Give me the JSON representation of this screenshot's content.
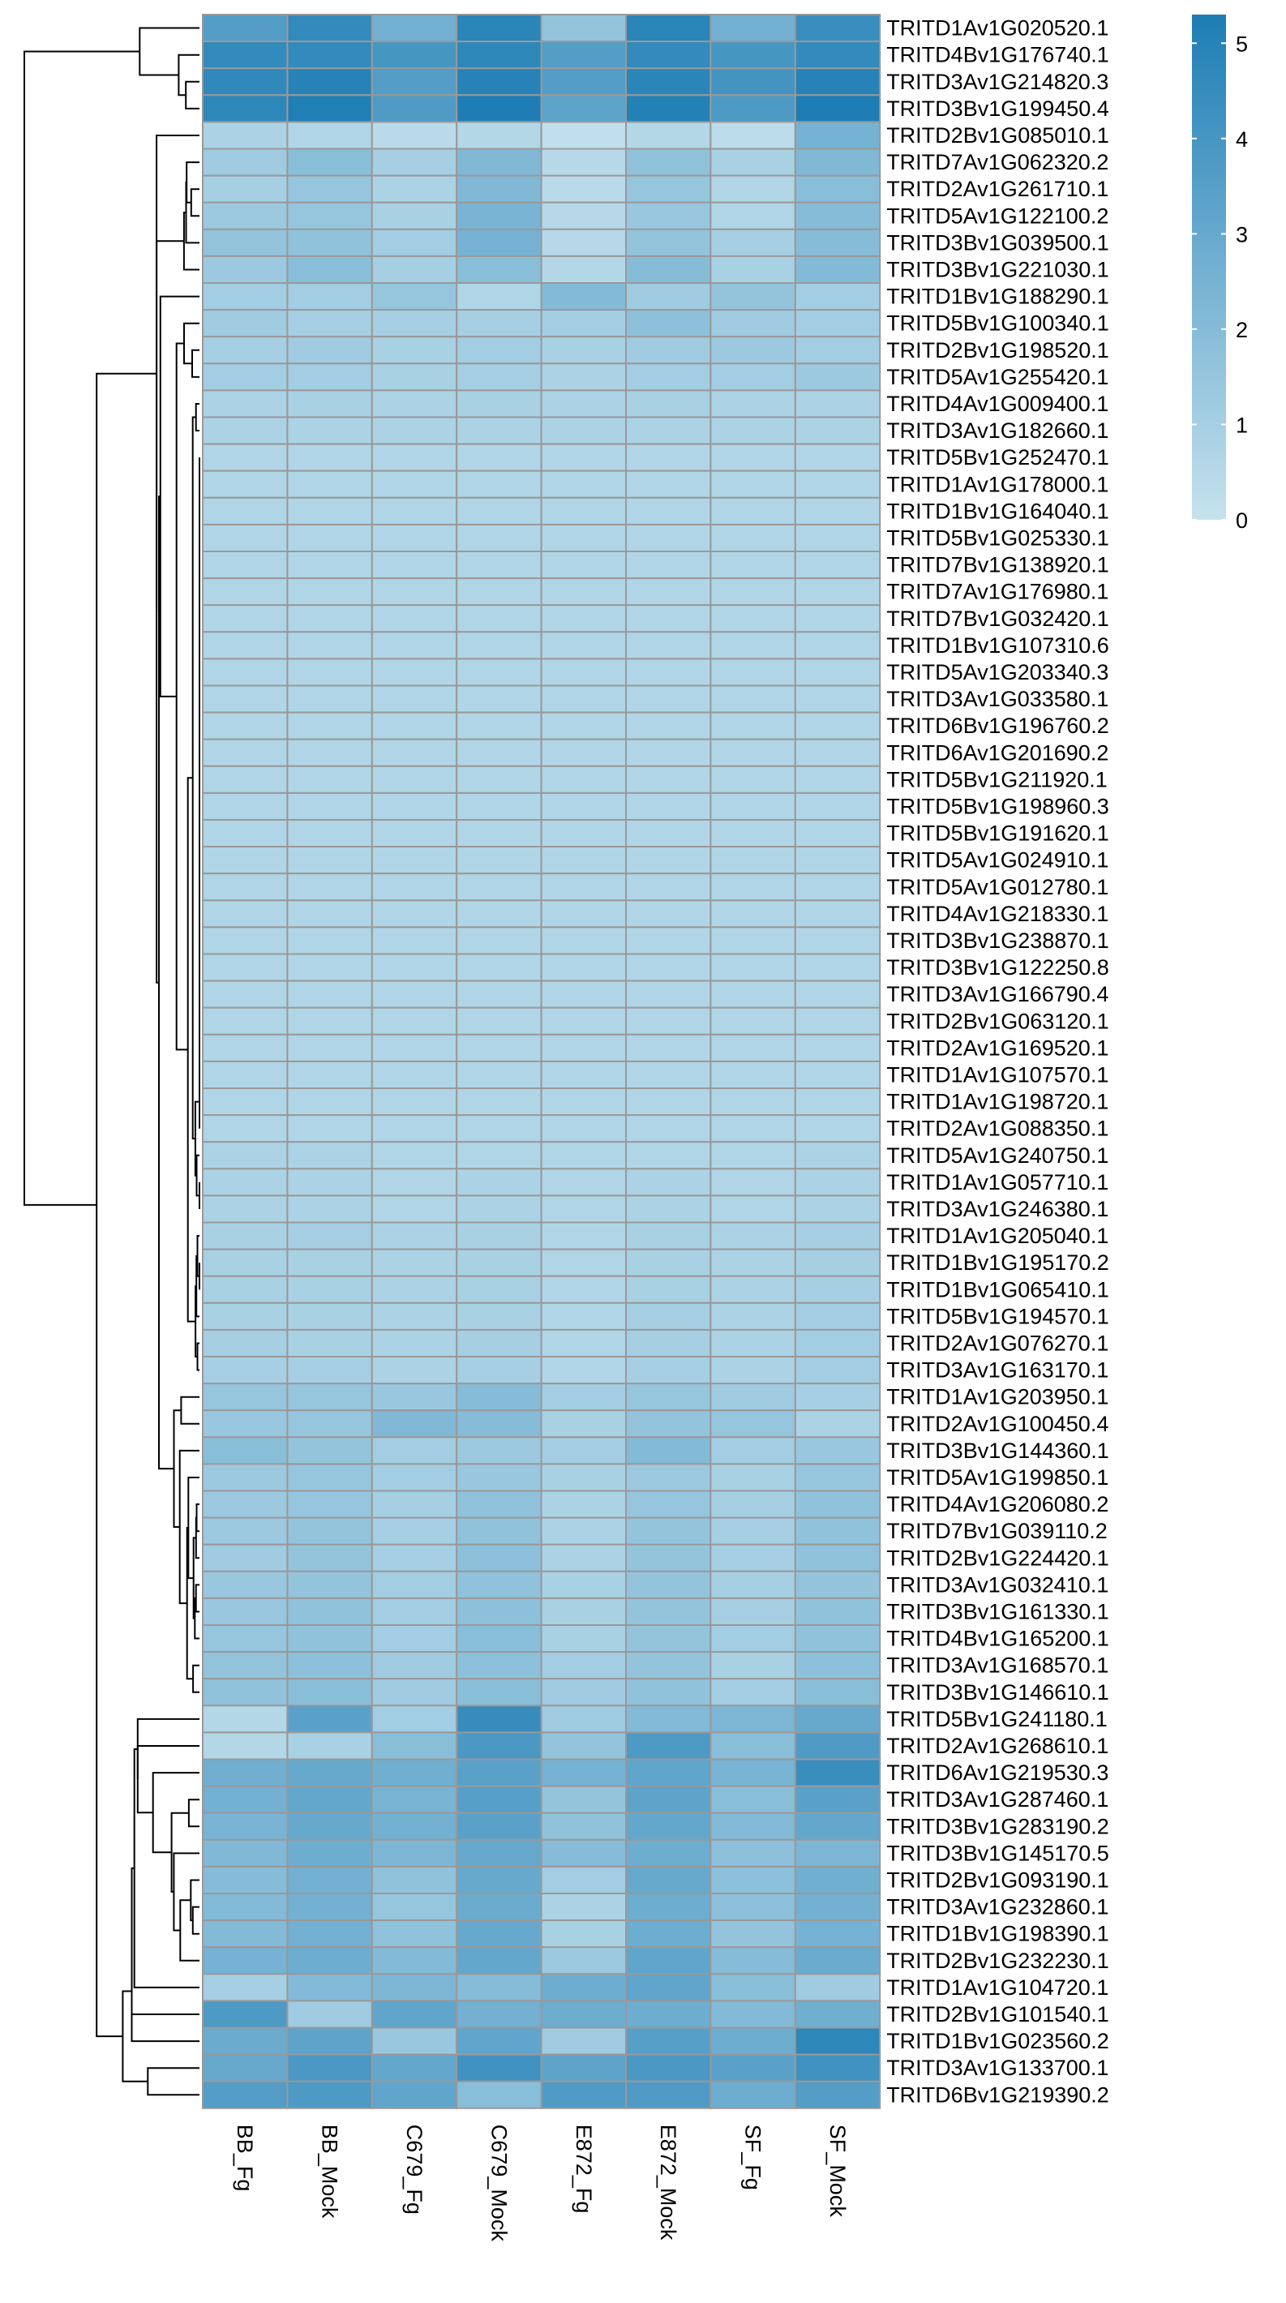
{
  "chart_data": {
    "type": "heatmap",
    "title": "",
    "columns": [
      "BB_Fg",
      "BB_Mock",
      "C679_Fg",
      "C679_Mock",
      "E872_Fg",
      "E872_Mock",
      "SF_Fg",
      "SF_Mock"
    ],
    "rows": [
      "TRITD1Av1G020520.1",
      "TRITD4Bv1G176740.1",
      "TRITD3Av1G214820.3",
      "TRITD3Bv1G199450.4",
      "TRITD2Bv1G085010.1",
      "TRITD7Av1G062320.2",
      "TRITD2Av1G261710.1",
      "TRITD5Av1G122100.2",
      "TRITD3Bv1G039500.1",
      "TRITD3Bv1G221030.1",
      "TRITD1Bv1G188290.1",
      "TRITD5Bv1G100340.1",
      "TRITD2Bv1G198520.1",
      "TRITD5Av1G255420.1",
      "TRITD4Av1G009400.1",
      "TRITD3Av1G182660.1",
      "TRITD5Bv1G252470.1",
      "TRITD1Av1G178000.1",
      "TRITD1Bv1G164040.1",
      "TRITD5Bv1G025330.1",
      "TRITD7Bv1G138920.1",
      "TRITD7Av1G176980.1",
      "TRITD7Bv1G032420.1",
      "TRITD1Bv1G107310.6",
      "TRITD5Av1G203340.3",
      "TRITD3Av1G033580.1",
      "TRITD6Bv1G196760.2",
      "TRITD6Av1G201690.2",
      "TRITD5Bv1G211920.1",
      "TRITD5Bv1G198960.3",
      "TRITD5Bv1G191620.1",
      "TRITD5Av1G024910.1",
      "TRITD5Av1G012780.1",
      "TRITD4Av1G218330.1",
      "TRITD3Bv1G238870.1",
      "TRITD3Bv1G122250.8",
      "TRITD3Av1G166790.4",
      "TRITD2Bv1G063120.1",
      "TRITD2Av1G169520.1",
      "TRITD1Av1G107570.1",
      "TRITD1Av1G198720.1",
      "TRITD2Av1G088350.1",
      "TRITD5Av1G240750.1",
      "TRITD1Av1G057710.1",
      "TRITD3Av1G246380.1",
      "TRITD1Av1G205040.1",
      "TRITD1Bv1G195170.2",
      "TRITD1Bv1G065410.1",
      "TRITD5Bv1G194570.1",
      "TRITD2Av1G076270.1",
      "TRITD3Av1G163170.1",
      "TRITD1Av1G203950.1",
      "TRITD2Av1G100450.4",
      "TRITD3Bv1G144360.1",
      "TRITD5Av1G199850.1",
      "TRITD4Av1G206080.2",
      "TRITD7Bv1G039110.2",
      "TRITD2Bv1G224420.1",
      "TRITD3Av1G032410.1",
      "TRITD3Bv1G161330.1",
      "TRITD4Bv1G165200.1",
      "TRITD3Av1G168570.1",
      "TRITD3Bv1G146610.1",
      "TRITD5Bv1G241180.1",
      "TRITD2Av1G268610.1",
      "TRITD6Av1G219530.3",
      "TRITD3Av1G287460.1",
      "TRITD3Bv1G283190.2",
      "TRITD3Bv1G145170.5",
      "TRITD2Bv1G093190.1",
      "TRITD3Av1G232860.1",
      "TRITD1Bv1G198390.1",
      "TRITD2Bv1G232230.1",
      "TRITD1Av1G104720.1",
      "TRITD2Bv1G101540.1",
      "TRITD1Bv1G023560.2",
      "TRITD3Av1G133700.1",
      "TRITD6Bv1G219390.2"
    ],
    "values": [
      [
        3.6,
        4.6,
        2.6,
        4.9,
        1.6,
        4.9,
        2.6,
        4.4
      ],
      [
        4.6,
        4.6,
        4.0,
        4.8,
        3.6,
        4.6,
        4.0,
        4.6
      ],
      [
        4.7,
        5.0,
        3.6,
        5.0,
        3.6,
        4.9,
        4.1,
        5.0
      ],
      [
        4.8,
        5.2,
        3.7,
        5.3,
        3.3,
        5.1,
        3.8,
        5.3
      ],
      [
        0.8,
        0.7,
        0.4,
        0.6,
        0.2,
        0.6,
        0.3,
        2.5
      ],
      [
        1.2,
        1.9,
        1.0,
        2.2,
        0.5,
        1.7,
        0.9,
        2.2
      ],
      [
        1.0,
        1.5,
        0.8,
        2.2,
        0.4,
        1.5,
        0.7,
        1.9
      ],
      [
        1.3,
        1.5,
        0.9,
        2.4,
        0.5,
        1.4,
        0.7,
        2.0
      ],
      [
        1.6,
        1.7,
        1.1,
        2.5,
        0.5,
        1.6,
        1.0,
        2.0
      ],
      [
        1.3,
        1.9,
        1.0,
        1.9,
        0.6,
        2.0,
        0.9,
        2.1
      ],
      [
        1.1,
        1.1,
        1.5,
        0.7,
        2.1,
        1.2,
        1.6,
        1.1
      ],
      [
        1.2,
        1.0,
        1.0,
        1.0,
        1.1,
        1.8,
        1.2,
        1.1
      ],
      [
        1.0,
        1.2,
        0.9,
        1.1,
        0.9,
        1.2,
        1.3,
        1.1
      ],
      [
        1.1,
        1.1,
        0.9,
        1.0,
        0.8,
        1.1,
        1.1,
        1.3
      ],
      [
        0.8,
        0.9,
        0.8,
        0.9,
        0.8,
        0.9,
        0.8,
        0.8
      ],
      [
        0.8,
        0.8,
        0.8,
        0.8,
        0.8,
        0.8,
        0.8,
        0.8
      ],
      [
        0.7,
        0.7,
        0.7,
        0.7,
        0.7,
        0.7,
        0.7,
        0.7
      ],
      [
        0.7,
        0.7,
        0.7,
        0.7,
        0.7,
        0.7,
        0.7,
        0.7
      ],
      [
        0.7,
        0.7,
        0.7,
        0.7,
        0.7,
        0.7,
        0.7,
        0.7
      ],
      [
        0.7,
        0.7,
        0.7,
        0.7,
        0.7,
        0.7,
        0.7,
        0.7
      ],
      [
        0.7,
        0.7,
        0.7,
        0.7,
        0.7,
        0.7,
        0.7,
        0.7
      ],
      [
        0.7,
        0.7,
        0.7,
        0.7,
        0.7,
        0.7,
        0.7,
        0.7
      ],
      [
        0.7,
        0.7,
        0.7,
        0.7,
        0.7,
        0.7,
        0.7,
        0.7
      ],
      [
        0.7,
        0.7,
        0.7,
        0.7,
        0.7,
        0.7,
        0.7,
        0.7
      ],
      [
        0.7,
        0.7,
        0.7,
        0.7,
        0.7,
        0.7,
        0.7,
        0.7
      ],
      [
        0.7,
        0.7,
        0.7,
        0.7,
        0.7,
        0.7,
        0.7,
        0.7
      ],
      [
        0.7,
        0.7,
        0.7,
        0.7,
        0.7,
        0.7,
        0.7,
        0.7
      ],
      [
        0.7,
        0.7,
        0.7,
        0.7,
        0.7,
        0.7,
        0.7,
        0.7
      ],
      [
        0.7,
        0.7,
        0.7,
        0.7,
        0.7,
        0.7,
        0.7,
        0.7
      ],
      [
        0.7,
        0.7,
        0.7,
        0.7,
        0.7,
        0.7,
        0.7,
        0.7
      ],
      [
        0.7,
        0.7,
        0.7,
        0.7,
        0.7,
        0.7,
        0.7,
        0.7
      ],
      [
        0.7,
        0.7,
        0.7,
        0.7,
        0.7,
        0.7,
        0.7,
        0.7
      ],
      [
        0.7,
        0.7,
        0.7,
        0.7,
        0.7,
        0.7,
        0.7,
        0.7
      ],
      [
        0.7,
        0.7,
        0.7,
        0.7,
        0.7,
        0.7,
        0.7,
        0.7
      ],
      [
        0.7,
        0.7,
        0.7,
        0.7,
        0.7,
        0.7,
        0.7,
        0.7
      ],
      [
        0.7,
        0.7,
        0.7,
        0.7,
        0.7,
        0.7,
        0.7,
        0.7
      ],
      [
        0.7,
        0.7,
        0.7,
        0.7,
        0.7,
        0.7,
        0.7,
        0.7
      ],
      [
        0.7,
        0.7,
        0.7,
        0.7,
        0.7,
        0.7,
        0.7,
        0.7
      ],
      [
        0.7,
        0.7,
        0.7,
        0.7,
        0.7,
        0.7,
        0.7,
        0.7
      ],
      [
        0.7,
        0.7,
        0.7,
        0.7,
        0.7,
        0.7,
        0.7,
        0.7
      ],
      [
        0.7,
        0.7,
        0.7,
        0.7,
        0.7,
        0.7,
        0.7,
        0.7
      ],
      [
        0.7,
        0.7,
        0.7,
        0.7,
        0.7,
        0.7,
        0.7,
        0.7
      ],
      [
        0.8,
        0.8,
        0.7,
        0.7,
        0.7,
        0.7,
        0.7,
        0.8
      ],
      [
        0.8,
        0.8,
        0.7,
        0.8,
        0.7,
        0.8,
        0.7,
        0.8
      ],
      [
        0.8,
        0.8,
        0.7,
        0.8,
        0.7,
        0.8,
        0.7,
        0.8
      ],
      [
        0.9,
        1.0,
        0.8,
        0.9,
        0.7,
        0.9,
        0.8,
        1.0
      ],
      [
        0.9,
        0.9,
        0.8,
        0.9,
        0.7,
        0.9,
        0.8,
        1.0
      ],
      [
        0.9,
        0.9,
        0.8,
        0.9,
        0.7,
        0.9,
        0.8,
        1.0
      ],
      [
        0.9,
        0.9,
        0.8,
        0.9,
        0.7,
        1.0,
        0.8,
        1.1
      ],
      [
        1.0,
        0.9,
        0.8,
        1.0,
        0.7,
        1.0,
        0.8,
        1.1
      ],
      [
        1.0,
        1.0,
        0.8,
        1.0,
        0.7,
        1.0,
        0.8,
        1.1
      ],
      [
        1.5,
        1.5,
        1.4,
        2.0,
        1.1,
        1.5,
        1.2,
        1.0
      ],
      [
        1.4,
        1.5,
        2.2,
        2.0,
        0.9,
        1.6,
        1.5,
        0.8
      ],
      [
        1.9,
        1.6,
        1.1,
        1.3,
        1.1,
        2.1,
        1.1,
        1.4
      ],
      [
        1.3,
        1.5,
        1.1,
        1.4,
        0.9,
        1.3,
        0.9,
        1.5
      ],
      [
        1.3,
        1.5,
        1.0,
        1.7,
        0.8,
        1.5,
        1.0,
        1.7
      ],
      [
        1.3,
        1.6,
        1.0,
        1.7,
        0.8,
        1.6,
        1.0,
        1.7
      ],
      [
        1.2,
        1.6,
        1.0,
        1.8,
        0.8,
        1.6,
        1.0,
        1.7
      ],
      [
        1.4,
        1.6,
        1.1,
        1.7,
        0.9,
        1.6,
        1.0,
        1.6
      ],
      [
        1.4,
        1.7,
        1.1,
        1.8,
        0.9,
        1.6,
        1.0,
        1.7
      ],
      [
        1.5,
        1.7,
        1.1,
        1.9,
        0.9,
        1.6,
        1.1,
        1.7
      ],
      [
        1.6,
        1.8,
        1.2,
        1.8,
        1.1,
        1.6,
        0.9,
        1.8
      ],
      [
        1.7,
        1.9,
        1.2,
        1.9,
        1.2,
        1.7,
        1.1,
        1.9
      ],
      [
        0.6,
        3.4,
        1.1,
        4.5,
        1.2,
        2.1,
        2.3,
        3.0
      ],
      [
        0.6,
        0.9,
        1.9,
        3.9,
        1.6,
        3.8,
        1.9,
        3.7
      ],
      [
        2.7,
        3.0,
        2.7,
        3.4,
        2.5,
        3.2,
        2.4,
        4.4
      ],
      [
        2.6,
        3.1,
        2.4,
        3.5,
        1.6,
        3.3,
        1.9,
        3.4
      ],
      [
        2.4,
        3.0,
        2.6,
        3.4,
        1.7,
        3.1,
        2.1,
        3.1
      ],
      [
        2.2,
        2.8,
        2.3,
        3.0,
        2.0,
        2.8,
        1.8,
        2.3
      ],
      [
        2.0,
        2.6,
        1.7,
        3.0,
        1.1,
        3.0,
        1.8,
        2.7
      ],
      [
        2.1,
        2.6,
        1.5,
        2.9,
        0.8,
        2.8,
        1.8,
        2.6
      ],
      [
        2.1,
        2.6,
        1.7,
        3.0,
        0.9,
        2.8,
        1.6,
        2.5
      ],
      [
        2.5,
        2.8,
        2.1,
        3.1,
        1.3,
        3.2,
        2.0,
        2.9
      ],
      [
        1.0,
        2.1,
        2.3,
        2.0,
        2.8,
        3.2,
        1.9,
        1.2
      ],
      [
        3.8,
        1.2,
        3.2,
        2.6,
        2.8,
        2.8,
        2.1,
        2.7
      ],
      [
        2.9,
        3.3,
        1.4,
        3.2,
        1.2,
        3.5,
        2.8,
        4.8
      ],
      [
        3.0,
        3.9,
        3.1,
        4.2,
        3.3,
        3.9,
        3.4,
        4.2
      ],
      [
        3.6,
        3.8,
        3.2,
        1.9,
        3.7,
        3.7,
        2.8,
        3.6
      ]
    ],
    "colorbar": {
      "ticks": [
        0,
        1,
        2,
        3,
        4,
        5
      ],
      "range": [
        0,
        5.3
      ],
      "colors": [
        "#c6e2ee",
        "#1d7db4"
      ]
    },
    "cell_border_color": "#999999",
    "row_dendrogram": true,
    "column_dendrogram": false
  }
}
